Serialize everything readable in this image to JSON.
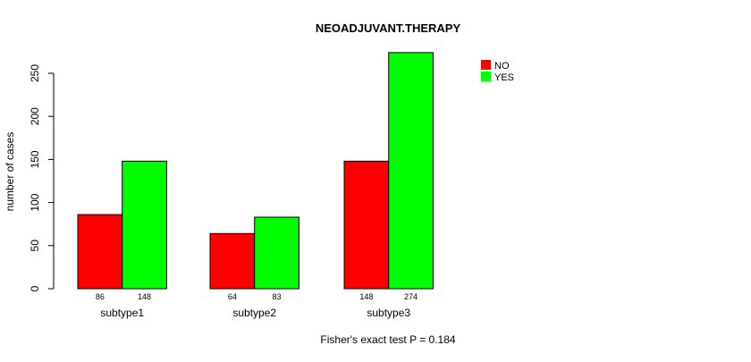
{
  "chart_data": {
    "type": "bar",
    "title": "NEOADJUVANT.THERAPY",
    "xlabel": "",
    "ylabel": "number of cases",
    "categories": [
      "subtype1",
      "subtype2",
      "subtype3"
    ],
    "series": [
      {
        "name": "NO",
        "color": "#ff0000",
        "values": [
          86,
          64,
          148
        ],
        "labels": [
          "86",
          "64",
          "148"
        ]
      },
      {
        "name": "YES",
        "color": "#00ff00",
        "values": [
          148,
          83,
          274
        ],
        "labels": [
          "148",
          "83",
          "274"
        ]
      }
    ],
    "yticks": [
      0,
      50,
      100,
      150,
      200,
      250
    ],
    "ytick_labels": [
      "0",
      "50",
      "100",
      "150",
      "200",
      "250"
    ],
    "ylim": [
      0,
      274
    ],
    "grid": false,
    "legend_position": "top-right",
    "annotation": "Fisher's exact test P = 0.184"
  }
}
